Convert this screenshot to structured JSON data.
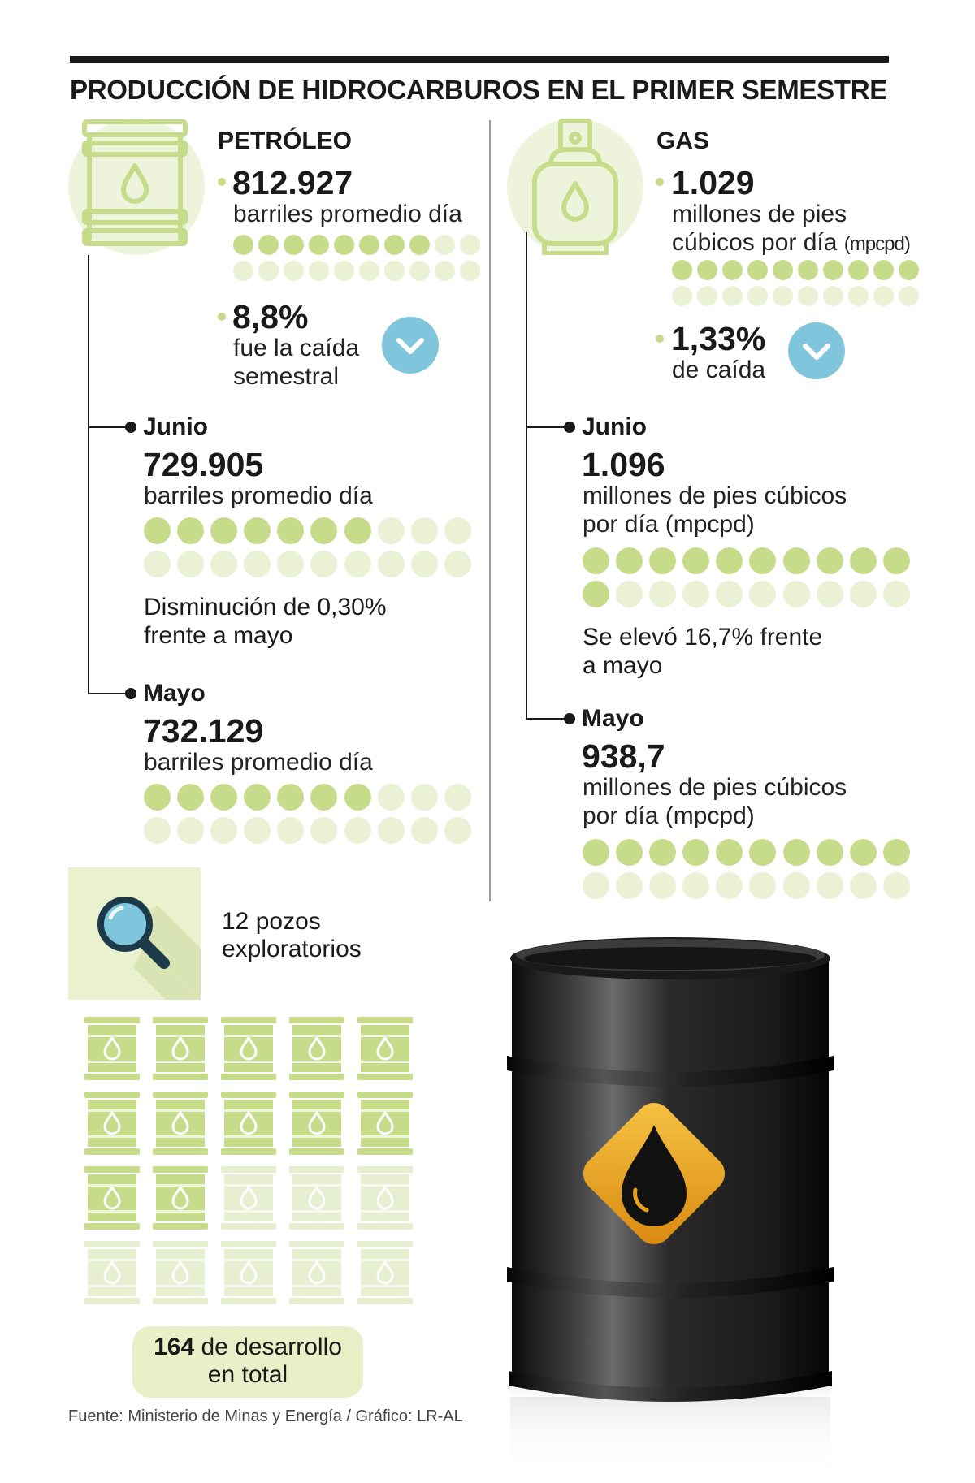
{
  "title": "PRODUCCIÓN DE HIDROCARBUROS EN EL PRIMER SEMESTRE",
  "petroleo": {
    "header": "PETRÓLEO",
    "promedio_value": "812.927",
    "promedio_unit": "barriles promedio día",
    "caida_value": "8,8%",
    "caida_line1": "fue la caída",
    "caida_line2": "semestral",
    "junio": {
      "label": "Junio",
      "value": "729.905",
      "unit": "barriles promedio día",
      "note_line1": "Disminución de 0,30%",
      "note_line2": "frente a mayo"
    },
    "mayo": {
      "label": "Mayo",
      "value": "732.129",
      "unit": "barriles promedio día"
    }
  },
  "gas": {
    "header": "GAS",
    "promedio_value": "1.029",
    "promedio_line1": "millones de pies",
    "promedio_line2": "cúbicos por día",
    "promedio_abbr": "(mpcpd)",
    "caida_value": "1,33%",
    "caida_line1": "de caída",
    "junio": {
      "label": "Junio",
      "value": "1.096",
      "unit_line1": "millones de pies cúbicos",
      "unit_line2": "por día (mpcpd)",
      "note_line1": "Se elevó 16,7% frente",
      "note_line2": "a mayo"
    },
    "mayo": {
      "label": "Mayo",
      "value": "938,7",
      "unit_line1": "millones de pies cúbicos",
      "unit_line2": "por día (mpcpd)"
    }
  },
  "dot_grids": {
    "petroleo_promedio": {
      "filled": 8,
      "total": 20
    },
    "petroleo_junio": {
      "filled": 7,
      "total": 20
    },
    "petroleo_mayo": {
      "filled": 7,
      "total": 20
    },
    "gas_promedio": {
      "filled": 10,
      "total": 20
    },
    "gas_junio": {
      "filled": 11,
      "total": 20
    },
    "gas_mayo": {
      "filled": 10,
      "total": 20
    }
  },
  "exploracion": {
    "label_line1": "12 pozos",
    "label_line2": "exploratorios"
  },
  "desarrollo": {
    "filled": 12,
    "total": 20,
    "number": "164",
    "text_line1": "de desarrollo",
    "text_line2": "en total"
  },
  "source": "Fuente: Ministerio de Minas y Energía / Gráfico: LR-AL",
  "icons": {
    "petroleo": "oil-barrel-icon",
    "gas": "gas-cylinder-icon",
    "caida": "chevron-down-icon",
    "exploracion": "magnifier-icon",
    "pozos": "barrel-icon",
    "ilustracion": "black-oil-drum-icon"
  },
  "colors": {
    "accent_green": "#c6dc8a",
    "light_green": "#eaf1d4",
    "arrow_blue": "#7fc6dc",
    "drop_orange": "#e8a01c",
    "text": "#1a1a1a"
  }
}
